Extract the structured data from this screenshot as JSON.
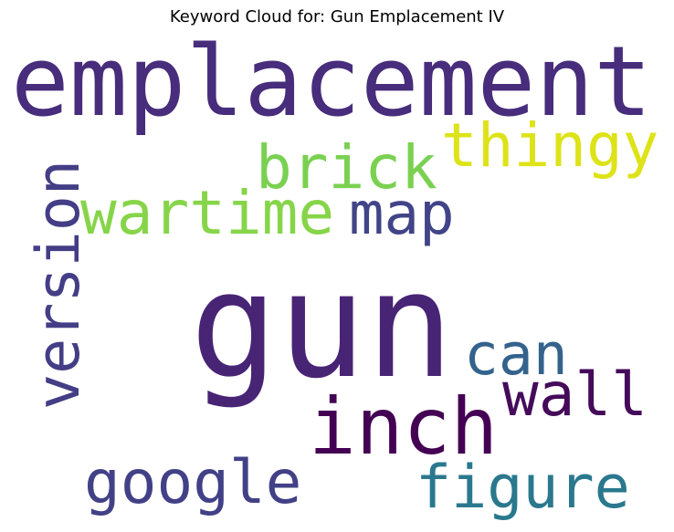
{
  "chart_data": {
    "type": "wordcloud",
    "title": "Keyword Cloud for: Gun Emplacement IV",
    "words": [
      {
        "text": "emplacement",
        "color": "#472d7b"
      },
      {
        "text": "thingy",
        "color": "#dde318"
      },
      {
        "text": "brick",
        "color": "#7ad151"
      },
      {
        "text": "wartime",
        "color": "#86d549"
      },
      {
        "text": "map",
        "color": "#414487"
      },
      {
        "text": "version",
        "color": "#433e85"
      },
      {
        "text": "gun",
        "color": "#482475"
      },
      {
        "text": "can",
        "color": "#33638d"
      },
      {
        "text": "wall",
        "color": "#450b5a"
      },
      {
        "text": "inch",
        "color": "#440154"
      },
      {
        "text": "google",
        "color": "#424086"
      },
      {
        "text": "figure",
        "color": "#2a788e"
      }
    ]
  }
}
